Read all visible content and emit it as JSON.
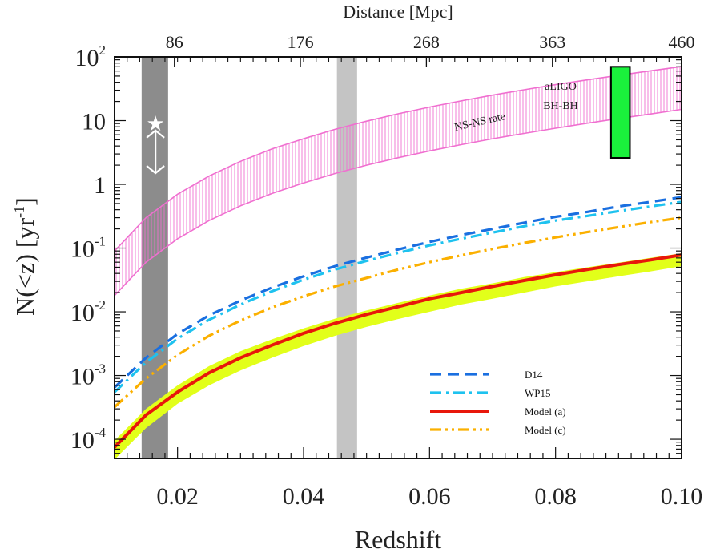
{
  "chart_data": {
    "type": "line",
    "xlabel": "Redshift",
    "top_xlabel": "Distance [Mpc]",
    "ylabel": "N(<z) [yr",
    "ylabel_sup": "-1",
    "ylabel_close": "]",
    "xlim": [
      0.01,
      0.1
    ],
    "ylim": [
      5e-05,
      100
    ],
    "yscale": "log",
    "x_ticks": [
      0.02,
      0.04,
      0.06,
      0.08,
      0.1
    ],
    "x_tick_labels": [
      "0.02",
      "0.04",
      "0.06",
      "0.08",
      "0.10"
    ],
    "top_ticks": [
      {
        "z": 0.0195,
        "label": "86"
      },
      {
        "z": 0.0395,
        "label": "176"
      },
      {
        "z": 0.0595,
        "label": "268"
      },
      {
        "z": 0.0795,
        "label": "363"
      },
      {
        "z": 0.1,
        "label": "460"
      }
    ],
    "y_ticks": [
      {
        "value": 0.0001,
        "base": "10",
        "exp": "-4"
      },
      {
        "value": 0.001,
        "base": "10",
        "exp": "-3"
      },
      {
        "value": 0.01,
        "base": "10",
        "exp": "-2"
      },
      {
        "value": 0.1,
        "base": "10",
        "exp": "-1"
      },
      {
        "value": 1,
        "base": "1",
        "exp": ""
      },
      {
        "value": 10,
        "base": "10",
        "exp": ""
      },
      {
        "value": 100,
        "base": "10",
        "exp": "2"
      }
    ],
    "x": [
      0.01,
      0.015,
      0.02,
      0.025,
      0.03,
      0.035,
      0.04,
      0.045,
      0.05,
      0.055,
      0.06,
      0.065,
      0.07,
      0.075,
      0.08,
      0.085,
      0.09,
      0.095,
      0.1
    ],
    "series": [
      {
        "name": "D14",
        "style": "dashed",
        "color": "#1a6fe0",
        "values": [
          0.00065,
          0.0019,
          0.0045,
          0.0088,
          0.015,
          0.024,
          0.036,
          0.052,
          0.071,
          0.095,
          0.125,
          0.16,
          0.2,
          0.25,
          0.31,
          0.37,
          0.45,
          0.53,
          0.63
        ]
      },
      {
        "name": "WP15",
        "style": "dashdot",
        "color": "#1ec2ef",
        "values": [
          0.00055,
          0.0016,
          0.0038,
          0.0075,
          0.013,
          0.021,
          0.032,
          0.046,
          0.063,
          0.084,
          0.11,
          0.14,
          0.175,
          0.22,
          0.27,
          0.32,
          0.38,
          0.45,
          0.53
        ]
      },
      {
        "name": "Model (a)",
        "style": "solid",
        "color": "#e8170b",
        "values": [
          7.5e-05,
          0.00024,
          0.00055,
          0.0011,
          0.0019,
          0.003,
          0.0046,
          0.0066,
          0.0091,
          0.012,
          0.016,
          0.02,
          0.025,
          0.031,
          0.038,
          0.046,
          0.055,
          0.065,
          0.078
        ]
      },
      {
        "name": "Model (c)",
        "style": "dashdotdot",
        "color": "#fbb000",
        "values": [
          0.00032,
          0.0009,
          0.0021,
          0.0042,
          0.0073,
          0.0117,
          0.0175,
          0.025,
          0.034,
          0.046,
          0.06,
          0.077,
          0.097,
          0.12,
          0.147,
          0.178,
          0.213,
          0.255,
          0.3
        ]
      }
    ],
    "model_a_band": {
      "lower": [
        4.8e-05,
        0.00015,
        0.00036,
        0.0007,
        0.0012,
        0.0019,
        0.0029,
        0.0042,
        0.0058,
        0.0077,
        0.01,
        0.013,
        0.016,
        0.02,
        0.025,
        0.03,
        0.036,
        0.043,
        0.052
      ],
      "upper": [
        9.5e-05,
        0.0003,
        0.0007,
        0.0014,
        0.0024,
        0.0037,
        0.0055,
        0.0078,
        0.0105,
        0.0138,
        0.018,
        0.023,
        0.028,
        0.035,
        0.042,
        0.05,
        0.059,
        0.07,
        0.083
      ],
      "color": "#e2ff1a"
    },
    "nsns_band": {
      "label": "NS-NS rate",
      "lower": [
        0.018,
        0.06,
        0.14,
        0.27,
        0.46,
        0.72,
        1.05,
        1.48,
        2.0,
        2.62,
        3.35,
        4.2,
        5.2,
        6.3,
        7.6,
        9.1,
        10.8,
        12.7,
        15.0
      ],
      "upper": [
        0.09,
        0.3,
        0.7,
        1.35,
        2.3,
        3.6,
        5.2,
        7.3,
        9.8,
        12.8,
        16.3,
        20.4,
        25.1,
        30.5,
        36.7,
        43.6,
        51.5,
        60.4,
        70.5
      ],
      "color": "#f06fd0"
    },
    "vertical_bands": [
      {
        "x0": 0.0143,
        "x1": 0.0185,
        "color": "#8c8c8c"
      },
      {
        "x0": 0.0453,
        "x1": 0.0485,
        "color": "#c4c4c4"
      }
    ],
    "aligo_box": {
      "label_line1": "aLIGO",
      "label_line2": "BH-BH",
      "x0": 0.0888,
      "x1": 0.0918,
      "y0": 2.6,
      "y1": 70,
      "color": "#1af03c"
    },
    "marker": {
      "x": 0.0165,
      "y_star": 9.0,
      "y_arrow_top": 7.0,
      "y_arrow_bottom": 1.5,
      "symbol": "★",
      "color": "#ffffff"
    },
    "legend_position": "bottom-right",
    "grid": false
  }
}
